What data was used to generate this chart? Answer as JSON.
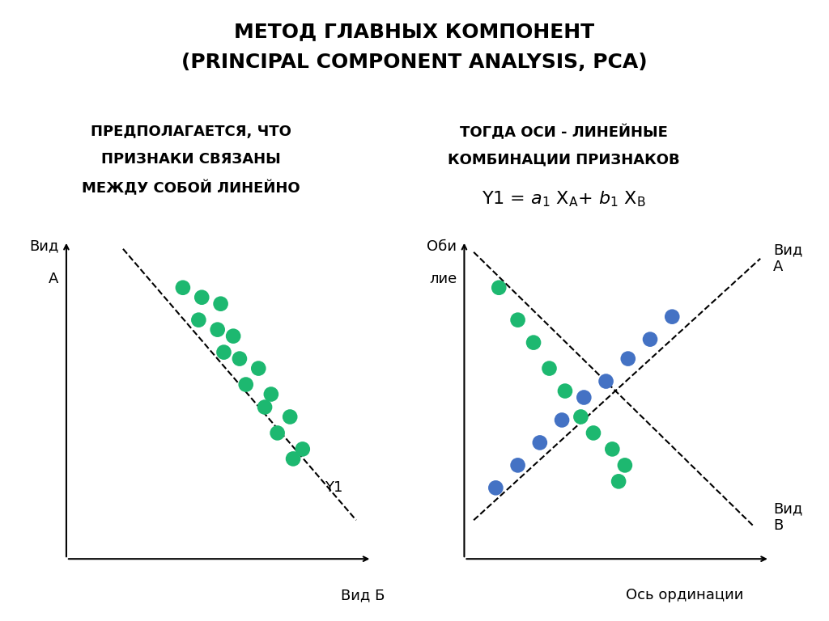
{
  "title_line1": "МЕТОД ГЛАВНЫХ КОМПОНЕНТ",
  "title_line2": "(PRINCIPAL COMPONENT ANALYSIS, PCA)",
  "left_text_line1": "ПРЕДПОЛАГАЕТСЯ, ЧТО",
  "left_text_line2": "ПРИЗНАКИ СВЯЗАНЫ",
  "left_text_line3": "МЕЖДУ СОБОЙ ЛИНЕЙНО",
  "right_text_line1": "ТОГДА ОСИ - ЛИНЕЙНЫЕ",
  "right_text_line2": "КОМБИНАЦИИ ПРИЗНАКОВ",
  "left_ylabel_line1": "Вид",
  "left_ylabel_line2": "А",
  "left_xlabel": "Вид Б",
  "left_dashed_label": "Y1",
  "right_ylabel_line1": "Оби",
  "right_ylabel_line2": "лие",
  "right_xlabel": "Ось ординации",
  "right_label_vida": "Вид\nА",
  "right_label_vidb": "Вид\nВ",
  "scatter1_green_x": [
    1.85,
    2.15,
    2.45,
    2.1,
    2.4,
    2.65,
    2.5,
    2.75,
    3.05,
    2.85,
    3.25,
    3.15,
    3.55,
    3.35,
    3.75,
    3.6
  ],
  "scatter1_green_y": [
    8.4,
    8.1,
    7.9,
    7.4,
    7.1,
    6.9,
    6.4,
    6.2,
    5.9,
    5.4,
    5.1,
    4.7,
    4.4,
    3.9,
    3.4,
    3.1
  ],
  "scatter2_green_x": [
    0.55,
    0.85,
    1.1,
    1.35,
    1.6,
    1.85,
    2.05,
    2.35,
    2.55,
    2.45
  ],
  "scatter2_green_y": [
    8.4,
    7.4,
    6.7,
    5.9,
    5.2,
    4.4,
    3.9,
    3.4,
    2.9,
    2.4
  ],
  "scatter2_blue_x": [
    0.5,
    0.85,
    1.2,
    1.55,
    1.9,
    2.25,
    2.6,
    2.95,
    3.3
  ],
  "scatter2_blue_y": [
    2.2,
    2.9,
    3.6,
    4.3,
    5.0,
    5.5,
    6.2,
    6.8,
    7.5
  ],
  "green_color": "#1db870",
  "blue_color": "#4472c4",
  "background_color": "#ffffff",
  "text_color": "#000000",
  "title_fontsize": 18,
  "body_fontsize": 13,
  "formula_fontsize": 16,
  "axis_label_fontsize": 13,
  "point_size": 180
}
